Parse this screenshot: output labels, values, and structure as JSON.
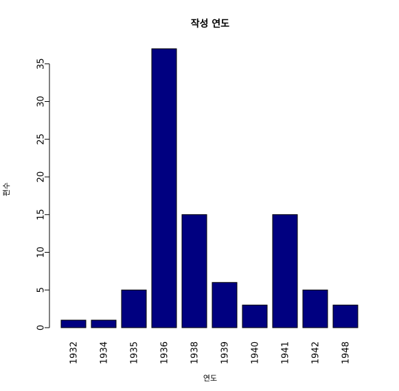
{
  "chart_data": {
    "type": "bar",
    "title": "작성 연도",
    "xlabel": "연도",
    "ylabel": "편수",
    "categories": [
      "1932",
      "1934",
      "1935",
      "1936",
      "1938",
      "1939",
      "1940",
      "1941",
      "1942",
      "1948"
    ],
    "values": [
      1,
      1,
      5,
      37,
      15,
      6,
      3,
      15,
      5,
      3
    ],
    "ylim": [
      0,
      37
    ],
    "yticks": [
      0,
      5,
      10,
      15,
      20,
      25,
      30,
      35
    ],
    "bar_color": "#000080",
    "grid": false,
    "legend": "none"
  }
}
